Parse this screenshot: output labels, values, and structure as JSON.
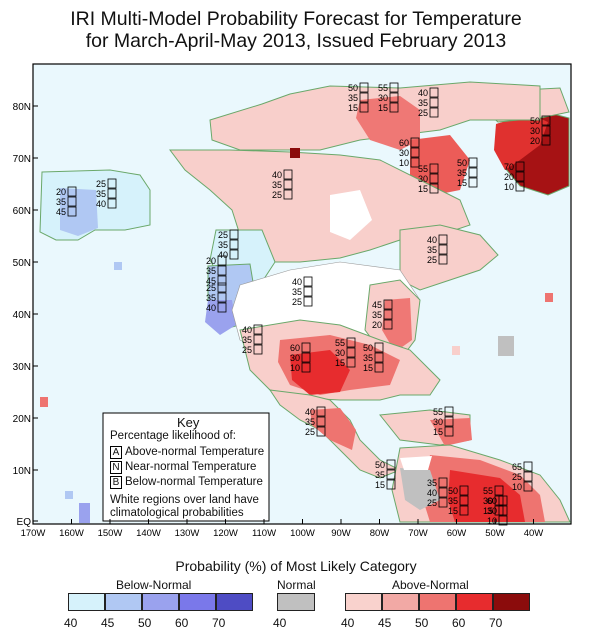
{
  "title_line1": "IRI Multi-Model Probability Forecast for Temperature",
  "title_line2": "for March-April-May 2013, Issued February 2013",
  "lat_labels": [
    "80N",
    "70N",
    "60N",
    "50N",
    "40N",
    "30N",
    "20N",
    "10N",
    "EQ"
  ],
  "lon_labels": [
    "170W",
    "160W",
    "150W",
    "140W",
    "130W",
    "120W",
    "110W",
    "100W",
    "90W",
    "80W",
    "70W",
    "60W",
    "50W",
    "40W"
  ],
  "key": {
    "title": "Key",
    "subtitle": "Percentage likelihood of:",
    "items": [
      {
        "letter": "A",
        "text": "Above-normal Temperature"
      },
      {
        "letter": "N",
        "text": "Near-normal Temperature"
      },
      {
        "letter": "B",
        "text": "Below-normal Temperature"
      }
    ],
    "note_line1": "White regions over land have",
    "note_line2": "climatological probabilities"
  },
  "legend": {
    "title": "Probability (%) of Most Likely Category",
    "below": {
      "label": "Below-Normal",
      "colors": [
        "#d6f2fb",
        "#b0c8f3",
        "#9aa2ee",
        "#7a78ea",
        "#4e4cc4"
      ],
      "ticks": [
        "40",
        "45",
        "50",
        "60",
        "70"
      ]
    },
    "normal": {
      "label": "Normal",
      "colors": [
        "#c0c0c0"
      ],
      "ticks": [
        "40"
      ]
    },
    "above": {
      "label": "Above-Normal",
      "colors": [
        "#f9d2cd",
        "#f2a9a5",
        "#ee7470",
        "#e72c2e",
        "#8b0c0c"
      ],
      "ticks": [
        "40",
        "45",
        "50",
        "60",
        "70"
      ]
    }
  },
  "annotations": [
    {
      "a": "20",
      "n": "35",
      "b": "45"
    },
    {
      "a": "25",
      "n": "35",
      "b": "40"
    },
    {
      "a": "40",
      "n": "35",
      "b": "25"
    },
    {
      "a": "50",
      "n": "35",
      "b": "15"
    },
    {
      "a": "55",
      "n": "30",
      "b": "15"
    },
    {
      "a": "40",
      "n": "35",
      "b": "25"
    },
    {
      "a": "60",
      "n": "30",
      "b": "10"
    },
    {
      "a": "55",
      "n": "30",
      "b": "15"
    },
    {
      "a": "50",
      "n": "35",
      "b": "15"
    },
    {
      "a": "50",
      "n": "30",
      "b": "20"
    },
    {
      "a": "70",
      "n": "20",
      "b": "10"
    },
    {
      "a": "25",
      "n": "35",
      "b": "40"
    },
    {
      "a": "20",
      "n": "35",
      "b": "45"
    },
    {
      "a": "25",
      "n": "35",
      "b": "40"
    },
    {
      "a": "40",
      "n": "35",
      "b": "25"
    },
    {
      "a": "40",
      "n": "35",
      "b": "25"
    },
    {
      "a": "45",
      "n": "35",
      "b": "20"
    },
    {
      "a": "40",
      "n": "35",
      "b": "25"
    },
    {
      "a": "60",
      "n": "30",
      "b": "10"
    },
    {
      "a": "55",
      "n": "30",
      "b": "15"
    },
    {
      "a": "50",
      "n": "35",
      "b": "15"
    },
    {
      "a": "40",
      "n": "35",
      "b": "25"
    },
    {
      "a": "55",
      "n": "30",
      "b": "15"
    },
    {
      "a": "50",
      "n": "35",
      "b": "15"
    },
    {
      "a": "35",
      "n": "40",
      "b": "25"
    },
    {
      "a": "50",
      "n": "35",
      "b": "15"
    },
    {
      "a": "55",
      "n": "30",
      "b": "15"
    },
    {
      "a": "65",
      "n": "25",
      "b": "10"
    },
    {
      "a": "60",
      "n": "30",
      "b": "10"
    }
  ]
}
